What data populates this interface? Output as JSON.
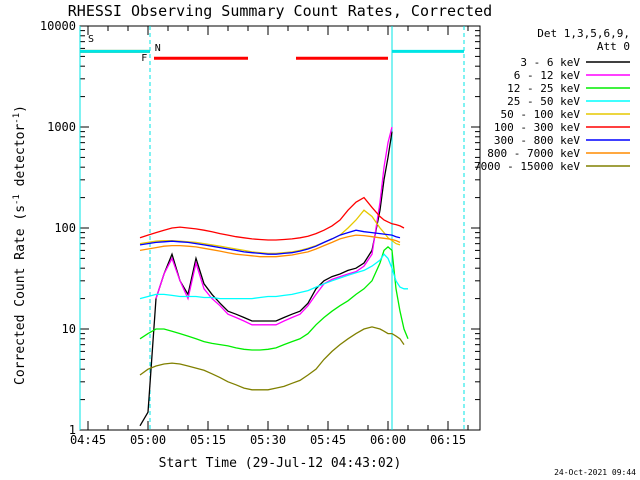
{
  "chart_data": {
    "type": "line",
    "title": "RHESSI Observing Summary Count Rates, Corrected",
    "xlabel": "Start Time (29-Jul-12 04:43:02)",
    "ylabel": "Corrected Count Rate (s⁻¹ detector⁻¹)",
    "ylabel_parts": [
      "Corrected Count Rate (s",
      "-1",
      " detector",
      "-1",
      ")"
    ],
    "yscale": "log",
    "ylim": [
      1,
      10000
    ],
    "xlim_minutes_after_0443": [
      0,
      100
    ],
    "grid": false,
    "legend_position": "right",
    "x_tick_labels": [
      "04:45",
      "05:00",
      "05:15",
      "05:30",
      "05:45",
      "06:00",
      "06:15"
    ],
    "x_ticks_minutes": [
      2,
      17,
      32,
      47,
      62,
      77,
      92
    ],
    "y_tick_labels": [
      "1",
      "10",
      "100",
      "1000",
      "10000"
    ],
    "y_ticks": [
      1,
      10,
      100,
      1000,
      10000
    ],
    "legend_header": [
      "Det 1,3,5,6,9,",
      "Att 0"
    ],
    "footer_date": "24-Oct-2021 09:44",
    "flags": [
      {
        "label": "S",
        "color": "#ff8c00",
        "segments": [
          [
            0,
            17.5
          ]
        ],
        "level": 5600
      },
      {
        "label": "N",
        "color": "#00e5e5",
        "segments": [
          [
            0,
            17.5
          ],
          [
            78,
            96
          ]
        ],
        "level": 5600
      },
      {
        "label": "F",
        "color": "#ff0000",
        "segments": [
          [
            18.5,
            42
          ],
          [
            54,
            77
          ]
        ],
        "level": 4800
      }
    ],
    "vlines": [
      {
        "x": 17.5,
        "color": "#00e5e5",
        "style": "dashed"
      },
      {
        "x": 78,
        "color": "#00e5e5",
        "style": "solid"
      },
      {
        "x": 96,
        "color": "#00e5e5",
        "style": "dashed"
      },
      {
        "x": 0,
        "color": "#00e5e5",
        "style": "solid"
      }
    ],
    "x": [
      13,
      15,
      17,
      19,
      21,
      23,
      25,
      27,
      29,
      31,
      33,
      35,
      37,
      39,
      41,
      43,
      45,
      47,
      49,
      51,
      53,
      55,
      57,
      59,
      61,
      63,
      65,
      67,
      69,
      71,
      73,
      75,
      76,
      77,
      78,
      79,
      80,
      81,
      82
    ],
    "series": [
      {
        "name": "3 - 6 keV",
        "color": "#000000",
        "values": [
          null,
          1.1,
          1.5,
          20,
          35,
          55,
          30,
          22,
          50,
          28,
          22,
          18,
          15,
          14,
          13,
          12,
          12,
          12,
          12,
          13,
          14,
          15,
          18,
          25,
          30,
          33,
          35,
          38,
          40,
          45,
          60,
          150,
          300,
          500,
          900,
          null,
          null,
          null,
          null
        ]
      },
      {
        "name": "6 - 12 keV",
        "color": "#ff00ff",
        "values": [
          null,
          null,
          null,
          20,
          35,
          50,
          30,
          20,
          45,
          25,
          20,
          17,
          14,
          13,
          12,
          11,
          11,
          11,
          11,
          12,
          13,
          14,
          17,
          22,
          28,
          31,
          33,
          35,
          37,
          42,
          55,
          180,
          400,
          700,
          1000,
          null,
          null,
          null,
          null
        ]
      },
      {
        "name": "12 - 25 keV",
        "color": "#00ee00",
        "values": [
          null,
          8,
          9,
          10,
          10,
          9.5,
          9,
          8.5,
          8,
          7.5,
          7.2,
          7,
          6.8,
          6.5,
          6.3,
          6.2,
          6.2,
          6.3,
          6.5,
          7,
          7.5,
          8,
          9,
          11,
          13,
          15,
          17,
          19,
          22,
          25,
          30,
          45,
          60,
          65,
          60,
          25,
          15,
          10,
          8
        ]
      },
      {
        "name": "25 - 50 keV",
        "color": "#00ffff",
        "values": [
          null,
          20,
          21,
          22,
          22,
          21.5,
          21,
          21,
          21,
          20.5,
          20.5,
          20,
          20,
          20,
          20,
          20,
          20.5,
          21,
          21,
          21.5,
          22,
          23,
          24,
          26,
          28,
          30,
          32,
          34,
          36,
          38,
          42,
          48,
          55,
          50,
          40,
          30,
          26,
          25,
          25
        ]
      },
      {
        "name": "50 - 100 keV",
        "color": "#e6c800",
        "values": [
          null,
          70,
          72,
          74,
          75,
          75,
          74,
          73,
          72,
          70,
          68,
          66,
          64,
          62,
          60,
          58,
          57,
          56,
          56,
          57,
          58,
          60,
          63,
          67,
          72,
          78,
          85,
          100,
          120,
          150,
          130,
          100,
          90,
          80,
          75,
          70,
          68,
          null,
          null
        ]
      },
      {
        "name": "100 - 300 keV",
        "color": "#ff0000",
        "values": [
          null,
          80,
          85,
          90,
          95,
          100,
          102,
          100,
          98,
          95,
          92,
          88,
          85,
          82,
          80,
          78,
          77,
          76,
          76,
          77,
          78,
          80,
          83,
          88,
          95,
          105,
          120,
          150,
          180,
          200,
          160,
          130,
          120,
          115,
          110,
          108,
          105,
          100,
          null
        ]
      },
      {
        "name": "300 - 800 keV",
        "color": "#0000ff",
        "values": [
          null,
          68,
          70,
          72,
          73,
          74,
          73,
          72,
          70,
          68,
          66,
          64,
          62,
          60,
          58,
          57,
          56,
          55,
          55,
          56,
          57,
          59,
          62,
          66,
          72,
          78,
          85,
          90,
          95,
          92,
          90,
          88,
          87,
          86,
          85,
          82,
          80,
          null,
          null
        ]
      },
      {
        "name": "800 - 7000 keV",
        "color": "#ff8c00",
        "values": [
          null,
          60,
          62,
          64,
          66,
          67,
          67,
          66,
          65,
          63,
          61,
          59,
          57,
          55,
          54,
          53,
          52,
          52,
          52,
          53,
          54,
          56,
          58,
          62,
          67,
          72,
          78,
          82,
          85,
          84,
          82,
          80,
          79,
          78,
          77,
          75,
          72,
          null,
          null
        ]
      },
      {
        "name": "7000 - 15000 keV",
        "color": "#808000",
        "values": [
          null,
          3.5,
          4,
          4.3,
          4.5,
          4.6,
          4.5,
          4.3,
          4.1,
          3.9,
          3.6,
          3.3,
          3.0,
          2.8,
          2.6,
          2.5,
          2.5,
          2.5,
          2.6,
          2.7,
          2.9,
          3.1,
          3.5,
          4,
          5,
          6,
          7,
          8,
          9,
          10,
          10.5,
          10,
          9.5,
          9,
          9,
          8.5,
          8,
          7,
          null
        ]
      }
    ]
  }
}
